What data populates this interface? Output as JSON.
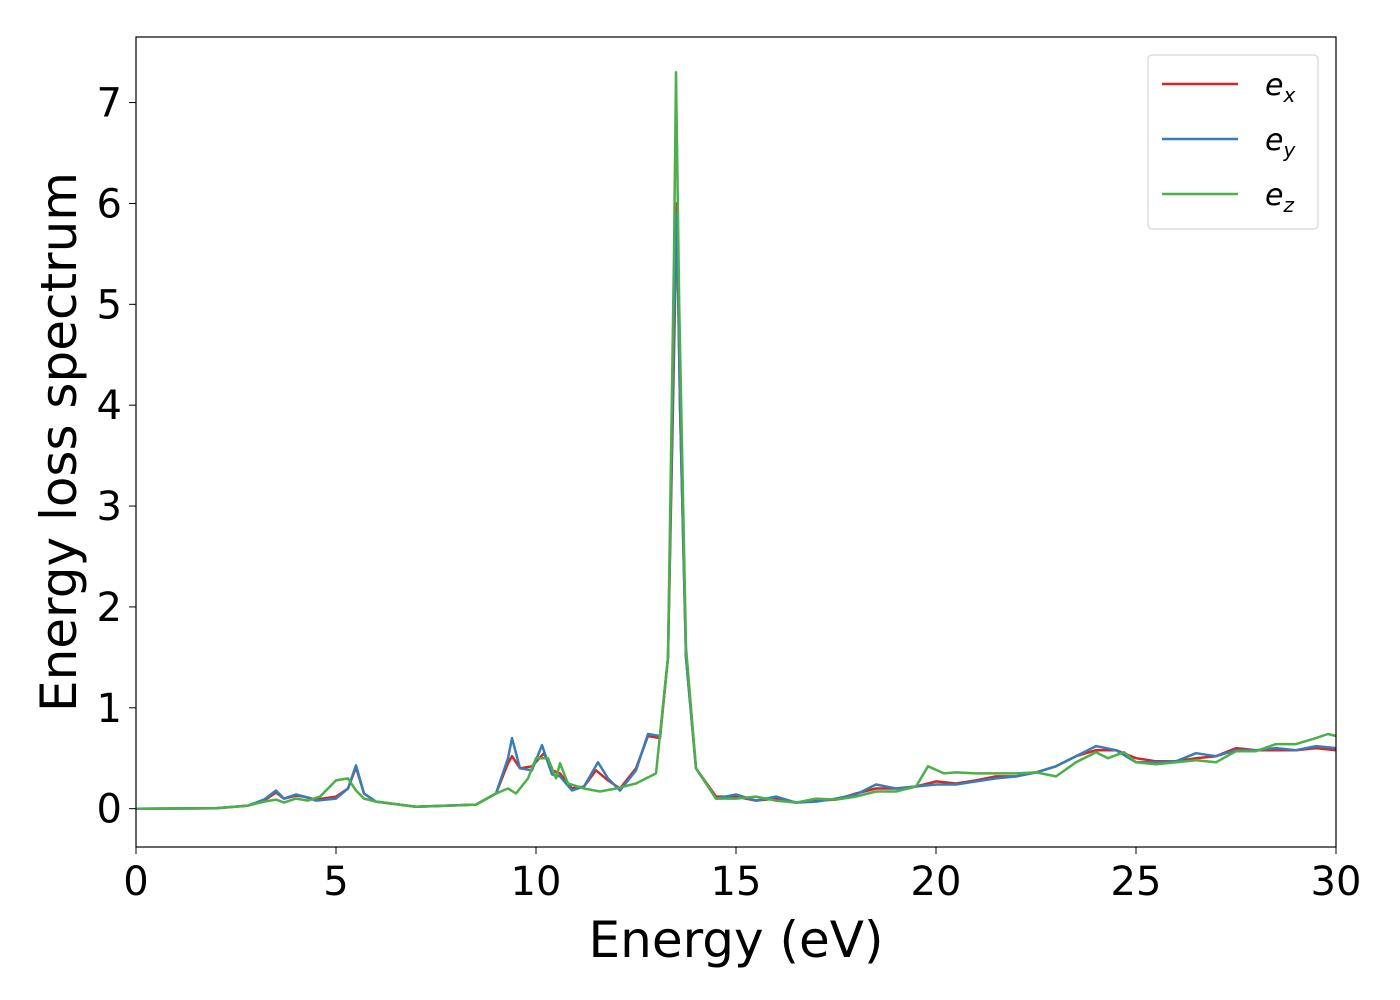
{
  "chart_data": {
    "type": "line",
    "xlabel": "Energy (eV)",
    "ylabel": "Energy loss spectrum",
    "xlim": [
      0,
      30
    ],
    "ylim": [
      -0.38,
      7.65
    ],
    "xticks": [
      0,
      5,
      10,
      15,
      20,
      25,
      30
    ],
    "yticks": [
      0,
      1,
      2,
      3,
      4,
      5,
      6,
      7
    ],
    "grid": false,
    "legend_position": "top-right",
    "series": [
      {
        "name": "e_x",
        "legend_main": "e",
        "legend_sub": "x",
        "color": "#d62728",
        "points": [
          [
            0,
            0
          ],
          [
            2,
            0.005
          ],
          [
            2.8,
            0.03
          ],
          [
            3.2,
            0.08
          ],
          [
            3.5,
            0.16
          ],
          [
            3.7,
            0.1
          ],
          [
            4.0,
            0.13
          ],
          [
            4.2,
            0.12
          ],
          [
            4.5,
            0.09
          ],
          [
            5.0,
            0.12
          ],
          [
            5.3,
            0.2
          ],
          [
            5.5,
            0.41
          ],
          [
            5.7,
            0.15
          ],
          [
            6.0,
            0.07
          ],
          [
            7.0,
            0.02
          ],
          [
            8.5,
            0.04
          ],
          [
            9.0,
            0.15
          ],
          [
            9.3,
            0.45
          ],
          [
            9.4,
            0.52
          ],
          [
            9.6,
            0.4
          ],
          [
            9.9,
            0.42
          ],
          [
            10.2,
            0.55
          ],
          [
            10.4,
            0.38
          ],
          [
            10.6,
            0.35
          ],
          [
            10.9,
            0.2
          ],
          [
            11.2,
            0.22
          ],
          [
            11.5,
            0.38
          ],
          [
            11.8,
            0.28
          ],
          [
            12.1,
            0.2
          ],
          [
            12.5,
            0.4
          ],
          [
            12.8,
            0.72
          ],
          [
            13.1,
            0.7
          ],
          [
            13.3,
            1.5
          ],
          [
            13.45,
            4.5
          ],
          [
            13.52,
            6.0
          ],
          [
            13.6,
            4.0
          ],
          [
            13.75,
            1.5
          ],
          [
            14.0,
            0.4
          ],
          [
            14.5,
            0.12
          ],
          [
            15,
            0.12
          ],
          [
            15.5,
            0.08
          ],
          [
            16,
            0.1
          ],
          [
            16.5,
            0.06
          ],
          [
            17,
            0.08
          ],
          [
            17.5,
            0.09
          ],
          [
            18,
            0.15
          ],
          [
            18.5,
            0.2
          ],
          [
            19,
            0.2
          ],
          [
            19.5,
            0.22
          ],
          [
            20,
            0.27
          ],
          [
            20.5,
            0.25
          ],
          [
            21,
            0.28
          ],
          [
            21.5,
            0.32
          ],
          [
            22,
            0.32
          ],
          [
            22.5,
            0.36
          ],
          [
            23,
            0.42
          ],
          [
            23.5,
            0.52
          ],
          [
            24,
            0.58
          ],
          [
            24.5,
            0.58
          ],
          [
            25,
            0.5
          ],
          [
            25.5,
            0.47
          ],
          [
            26,
            0.47
          ],
          [
            26.5,
            0.5
          ],
          [
            27,
            0.52
          ],
          [
            27.5,
            0.6
          ],
          [
            28,
            0.58
          ],
          [
            28.5,
            0.58
          ],
          [
            29,
            0.58
          ],
          [
            29.5,
            0.6
          ],
          [
            30,
            0.58
          ]
        ]
      },
      {
        "name": "e_y",
        "legend_main": "e",
        "legend_sub": "y",
        "color": "#377eb8",
        "points": [
          [
            0,
            0
          ],
          [
            2,
            0.005
          ],
          [
            2.8,
            0.03
          ],
          [
            3.2,
            0.09
          ],
          [
            3.5,
            0.18
          ],
          [
            3.7,
            0.1
          ],
          [
            4.0,
            0.14
          ],
          [
            4.2,
            0.12
          ],
          [
            4.5,
            0.08
          ],
          [
            5.0,
            0.1
          ],
          [
            5.3,
            0.2
          ],
          [
            5.5,
            0.43
          ],
          [
            5.7,
            0.15
          ],
          [
            6.0,
            0.07
          ],
          [
            7.0,
            0.02
          ],
          [
            8.5,
            0.04
          ],
          [
            9.0,
            0.15
          ],
          [
            9.3,
            0.5
          ],
          [
            9.4,
            0.7
          ],
          [
            9.6,
            0.4
          ],
          [
            9.9,
            0.38
          ],
          [
            10.15,
            0.63
          ],
          [
            10.4,
            0.34
          ],
          [
            10.6,
            0.32
          ],
          [
            10.9,
            0.18
          ],
          [
            11.2,
            0.22
          ],
          [
            11.55,
            0.46
          ],
          [
            11.8,
            0.3
          ],
          [
            12.1,
            0.18
          ],
          [
            12.5,
            0.38
          ],
          [
            12.8,
            0.74
          ],
          [
            13.1,
            0.72
          ],
          [
            13.3,
            1.5
          ],
          [
            13.45,
            4.8
          ],
          [
            13.52,
            5.9
          ],
          [
            13.6,
            4.0
          ],
          [
            13.75,
            1.5
          ],
          [
            14.0,
            0.4
          ],
          [
            14.5,
            0.1
          ],
          [
            15,
            0.14
          ],
          [
            15.5,
            0.08
          ],
          [
            16,
            0.12
          ],
          [
            16.5,
            0.06
          ],
          [
            17,
            0.07
          ],
          [
            17.5,
            0.1
          ],
          [
            18,
            0.14
          ],
          [
            18.5,
            0.24
          ],
          [
            19,
            0.2
          ],
          [
            19.5,
            0.22
          ],
          [
            20,
            0.24
          ],
          [
            20.5,
            0.24
          ],
          [
            21,
            0.27
          ],
          [
            21.5,
            0.3
          ],
          [
            22,
            0.32
          ],
          [
            22.5,
            0.36
          ],
          [
            23,
            0.42
          ],
          [
            23.5,
            0.52
          ],
          [
            24,
            0.62
          ],
          [
            24.5,
            0.58
          ],
          [
            25,
            0.46
          ],
          [
            25.5,
            0.46
          ],
          [
            26,
            0.47
          ],
          [
            26.5,
            0.55
          ],
          [
            27,
            0.52
          ],
          [
            27.5,
            0.58
          ],
          [
            28,
            0.58
          ],
          [
            28.5,
            0.6
          ],
          [
            29,
            0.58
          ],
          [
            29.5,
            0.62
          ],
          [
            30,
            0.6
          ]
        ]
      },
      {
        "name": "e_z",
        "legend_main": "e",
        "legend_sub": "z",
        "color": "#4daf4a",
        "points": [
          [
            0,
            0
          ],
          [
            2,
            0.005
          ],
          [
            2.8,
            0.03
          ],
          [
            3.2,
            0.07
          ],
          [
            3.5,
            0.09
          ],
          [
            3.7,
            0.06
          ],
          [
            4.0,
            0.1
          ],
          [
            4.3,
            0.08
          ],
          [
            4.6,
            0.12
          ],
          [
            5.0,
            0.28
          ],
          [
            5.3,
            0.3
          ],
          [
            5.5,
            0.18
          ],
          [
            5.7,
            0.1
          ],
          [
            6.0,
            0.07
          ],
          [
            7.0,
            0.02
          ],
          [
            8.5,
            0.04
          ],
          [
            9.0,
            0.15
          ],
          [
            9.3,
            0.2
          ],
          [
            9.5,
            0.15
          ],
          [
            9.8,
            0.3
          ],
          [
            10.0,
            0.5
          ],
          [
            10.3,
            0.5
          ],
          [
            10.5,
            0.3
          ],
          [
            10.6,
            0.45
          ],
          [
            10.8,
            0.25
          ],
          [
            11.2,
            0.2
          ],
          [
            11.6,
            0.17
          ],
          [
            12.0,
            0.2
          ],
          [
            12.5,
            0.25
          ],
          [
            13.0,
            0.35
          ],
          [
            13.3,
            1.5
          ],
          [
            13.45,
            5.5
          ],
          [
            13.5,
            7.3
          ],
          [
            13.58,
            5.0
          ],
          [
            13.75,
            1.6
          ],
          [
            14.0,
            0.4
          ],
          [
            14.5,
            0.1
          ],
          [
            15,
            0.1
          ],
          [
            15.5,
            0.12
          ],
          [
            16,
            0.08
          ],
          [
            16.5,
            0.06
          ],
          [
            17,
            0.1
          ],
          [
            17.5,
            0.09
          ],
          [
            18,
            0.12
          ],
          [
            18.5,
            0.17
          ],
          [
            19,
            0.17
          ],
          [
            19.5,
            0.22
          ],
          [
            19.8,
            0.42
          ],
          [
            20.2,
            0.35
          ],
          [
            20.5,
            0.36
          ],
          [
            21,
            0.35
          ],
          [
            21.5,
            0.35
          ],
          [
            22,
            0.35
          ],
          [
            22.5,
            0.36
          ],
          [
            23,
            0.32
          ],
          [
            23.5,
            0.46
          ],
          [
            24,
            0.56
          ],
          [
            24.3,
            0.5
          ],
          [
            24.7,
            0.56
          ],
          [
            25,
            0.46
          ],
          [
            25.5,
            0.44
          ],
          [
            26,
            0.46
          ],
          [
            26.5,
            0.48
          ],
          [
            27,
            0.46
          ],
          [
            27.5,
            0.57
          ],
          [
            28,
            0.57
          ],
          [
            28.5,
            0.64
          ],
          [
            29,
            0.64
          ],
          [
            29.5,
            0.7
          ],
          [
            29.8,
            0.74
          ],
          [
            30,
            0.72
          ]
        ]
      }
    ]
  }
}
